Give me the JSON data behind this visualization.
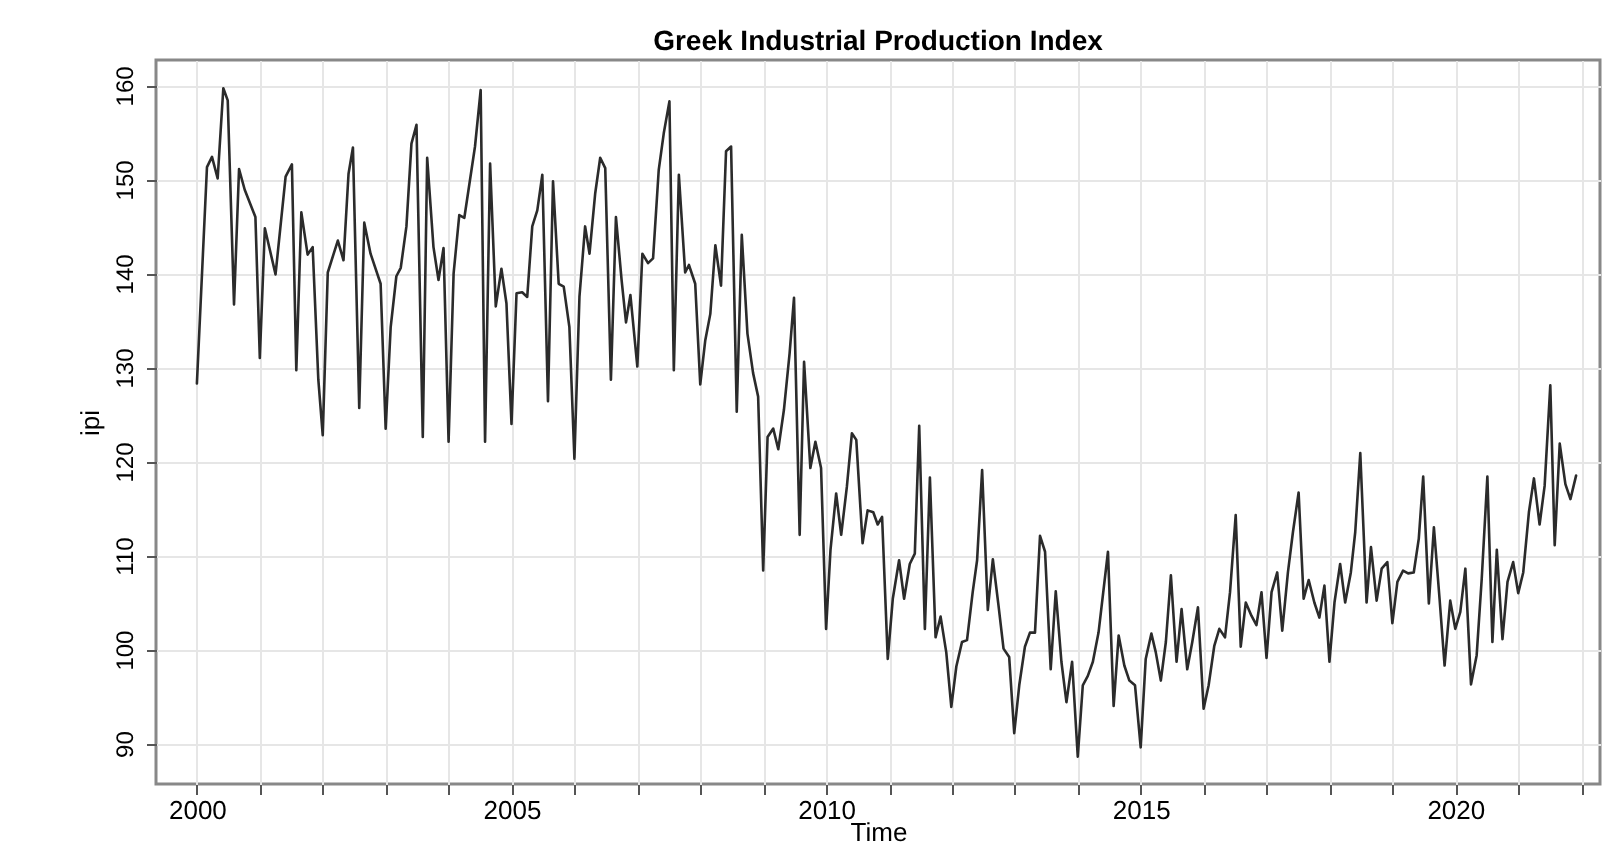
{
  "chart_data": {
    "type": "line",
    "title": "Greek Industrial Production Index",
    "xlabel": "Time",
    "ylabel": "ipi",
    "x": [
      2000.0,
      2000.16,
      2000.24,
      2000.33,
      2000.42,
      2000.49,
      2000.59,
      2000.67,
      2000.76,
      2000.93,
      2001.0,
      2001.08,
      2001.25,
      2001.41,
      2001.51,
      2001.58,
      2001.66,
      2001.76,
      2001.84,
      2001.93,
      2002.0,
      2002.08,
      2002.24,
      2002.33,
      2002.41,
      2002.48,
      2002.58,
      2002.66,
      2002.76,
      2002.92,
      2003.0,
      2003.08,
      2003.17,
      2003.24,
      2003.33,
      2003.41,
      2003.49,
      2003.59,
      2003.66,
      2003.76,
      2003.84,
      2003.92,
      2004.0,
      2004.08,
      2004.17,
      2004.25,
      2004.42,
      2004.51,
      2004.58,
      2004.66,
      2004.75,
      2004.84,
      2004.92,
      2005.0,
      2005.08,
      2005.17,
      2005.25,
      2005.33,
      2005.41,
      2005.49,
      2005.58,
      2005.66,
      2005.75,
      2005.83,
      2005.92,
      2006.0,
      2006.08,
      2006.17,
      2006.24,
      2006.33,
      2006.41,
      2006.49,
      2006.58,
      2006.66,
      2006.75,
      2006.82,
      2006.89,
      2007.0,
      2007.08,
      2007.17,
      2007.25,
      2007.34,
      2007.42,
      2007.51,
      2007.58,
      2007.66,
      2007.76,
      2007.82,
      2007.92,
      2008.0,
      2008.08,
      2008.16,
      2008.24,
      2008.33,
      2008.41,
      2008.49,
      2008.58,
      2008.66,
      2008.75,
      2008.84,
      2008.92,
      2009.0,
      2009.07,
      2009.16,
      2009.24,
      2009.33,
      2009.42,
      2009.49,
      2009.58,
      2009.65,
      2009.75,
      2009.83,
      2009.92,
      2010.0,
      2010.07,
      2010.16,
      2010.24,
      2010.33,
      2010.41,
      2010.48,
      2010.58,
      2010.66,
      2010.75,
      2010.82,
      2010.89,
      2010.98,
      2011.06,
      2011.16,
      2011.24,
      2011.33,
      2011.41,
      2011.48,
      2011.57,
      2011.65,
      2011.74,
      2011.82,
      2011.91,
      2011.99,
      2012.07,
      2012.16,
      2012.24,
      2012.33,
      2012.4,
      2012.48,
      2012.57,
      2012.65,
      2012.74,
      2012.82,
      2012.91,
      2012.99,
      2013.07,
      2013.16,
      2013.24,
      2013.32,
      2013.4,
      2013.48,
      2013.57,
      2013.65,
      2013.74,
      2013.82,
      2013.91,
      2014.0,
      2014.08,
      2014.16,
      2014.24,
      2014.33,
      2014.48,
      2014.57,
      2014.65,
      2014.74,
      2014.82,
      2014.91,
      2015.0,
      2015.08,
      2015.17,
      2015.24,
      2015.32,
      2015.4,
      2015.48,
      2015.57,
      2015.65,
      2015.74,
      2015.82,
      2015.91,
      2016.0,
      2016.08,
      2016.17,
      2016.25,
      2016.34,
      2016.42,
      2016.51,
      2016.59,
      2016.67,
      2016.76,
      2016.84,
      2016.92,
      2017.0,
      2017.08,
      2017.17,
      2017.25,
      2017.34,
      2017.42,
      2017.51,
      2017.59,
      2017.67,
      2017.76,
      2017.84,
      2017.92,
      2018.0,
      2018.08,
      2018.17,
      2018.25,
      2018.34,
      2018.41,
      2018.49,
      2018.59,
      2018.66,
      2018.75,
      2018.83,
      2018.92,
      2019.0,
      2019.08,
      2019.17,
      2019.25,
      2019.34,
      2019.42,
      2019.49,
      2019.58,
      2019.66,
      2019.75,
      2019.83,
      2019.92,
      2020.0,
      2020.08,
      2020.16,
      2020.25,
      2020.34,
      2020.42,
      2020.51,
      2020.59,
      2020.66,
      2020.75,
      2020.83,
      2020.92,
      2021.0,
      2021.08,
      2021.17,
      2021.25,
      2021.34,
      2021.42,
      2021.51,
      2021.58,
      2021.66,
      2021.75,
      2021.83,
      2021.92
    ],
    "series": [
      {
        "color": "#2b2b2b",
        "values": [
          128.3,
          151.3,
          152.4,
          150.1,
          159.7,
          158.4,
          136.7,
          151.1,
          148.9,
          146.0,
          131.0,
          144.8,
          139.9,
          150.3,
          151.6,
          129.7,
          146.5,
          142.0,
          142.8,
          128.7,
          122.8,
          140.1,
          143.5,
          141.4,
          150.6,
          153.4,
          125.7,
          145.4,
          142.1,
          138.9,
          123.5,
          134.3,
          139.7,
          140.6,
          145.0,
          153.8,
          155.8,
          122.6,
          152.3,
          142.8,
          139.3,
          142.7,
          122.1,
          140.0,
          146.2,
          145.9,
          153.5,
          159.5,
          122.1,
          151.7,
          136.5,
          140.5,
          136.8,
          124.0,
          137.9,
          138.0,
          137.5,
          145.0,
          146.7,
          150.5,
          126.4,
          149.8,
          138.9,
          138.6,
          134.3,
          120.3,
          137.5,
          145.0,
          142.1,
          148.5,
          152.3,
          151.2,
          128.7,
          146.0,
          139.3,
          134.8,
          137.7,
          130.1,
          142.1,
          141.1,
          141.6,
          151.0,
          154.9,
          158.3,
          129.7,
          150.5,
          140.1,
          140.9,
          138.9,
          128.2,
          132.9,
          135.7,
          143.0,
          138.7,
          153.0,
          153.5,
          125.3,
          144.1,
          133.6,
          129.4,
          126.9,
          108.4,
          122.6,
          123.5,
          121.3,
          125.5,
          131.5,
          137.4,
          112.2,
          130.6,
          119.3,
          122.1,
          119.3,
          102.2,
          110.6,
          116.6,
          112.2,
          117.3,
          123.0,
          122.3,
          111.3,
          114.8,
          114.6,
          113.3,
          114.1,
          99.0,
          105.4,
          109.5,
          105.4,
          109.1,
          110.2,
          123.8,
          102.2,
          118.3,
          101.3,
          103.5,
          99.7,
          93.9,
          98.2,
          100.8,
          101.0,
          106.1,
          109.5,
          119.1,
          104.2,
          109.6,
          104.7,
          100.1,
          99.2,
          91.1,
          96.2,
          100.3,
          101.8,
          101.8,
          112.1,
          110.4,
          97.9,
          106.2,
          98.7,
          94.4,
          98.7,
          88.6,
          96.2,
          97.2,
          98.7,
          101.8,
          110.4,
          94.0,
          101.5,
          98.3,
          96.7,
          96.2,
          89.6,
          99.0,
          101.7,
          99.7,
          96.7,
          100.8,
          107.9,
          98.7,
          104.3,
          97.9,
          100.8,
          104.5,
          93.7,
          96.2,
          100.4,
          102.2,
          101.3,
          106.1,
          114.3,
          100.3,
          105.0,
          103.6,
          102.6,
          106.1,
          99.1,
          106.1,
          108.2,
          102.0,
          108.2,
          112.5,
          116.7,
          105.4,
          107.4,
          105.0,
          103.4,
          106.8,
          98.7,
          105.0,
          109.1,
          105.0,
          108.2,
          112.5,
          120.9,
          105.0,
          110.9,
          105.2,
          108.6,
          109.3,
          102.8,
          107.2,
          108.4,
          108.1,
          108.2,
          111.8,
          118.4,
          104.9,
          113.0,
          105.4,
          98.3,
          105.2,
          102.2,
          104.0,
          108.6,
          96.3,
          99.4,
          107.5,
          118.4,
          100.8,
          110.6,
          101.1,
          107.2,
          109.3,
          106.0,
          108.2,
          114.6,
          118.2,
          113.3,
          117.4,
          128.1,
          111.1,
          121.9,
          117.6,
          116.0,
          118.5
        ]
      }
    ],
    "xlim": [
      1999.35,
      2022.3
    ],
    "ylim": [
      85.7,
      162.7
    ],
    "xticks": [
      2000,
      {
        "value": 2001,
        "label": null
      },
      {
        "value": 2002,
        "label": null
      },
      {
        "value": 2003,
        "label": null
      },
      {
        "value": 2004,
        "label": null
      },
      2005,
      {
        "value": 2006,
        "label": null
      },
      {
        "value": 2007,
        "label": null
      },
      {
        "value": 2008,
        "label": null
      },
      {
        "value": 2009,
        "label": null
      },
      2010,
      {
        "value": 2011,
        "label": null
      },
      {
        "value": 2012,
        "label": null
      },
      {
        "value": 2013,
        "label": null
      },
      {
        "value": 2014,
        "label": null
      },
      2015,
      {
        "value": 2016,
        "label": null
      },
      {
        "value": 2017,
        "label": null
      },
      {
        "value": 2018,
        "label": null
      },
      {
        "value": 2019,
        "label": null
      },
      2020,
      {
        "value": 2021,
        "label": null
      },
      {
        "value": 2022,
        "label": null
      }
    ],
    "yticks": [
      90,
      100,
      110,
      120,
      130,
      140,
      150,
      160
    ],
    "grid": true,
    "line_style": "solid"
  }
}
